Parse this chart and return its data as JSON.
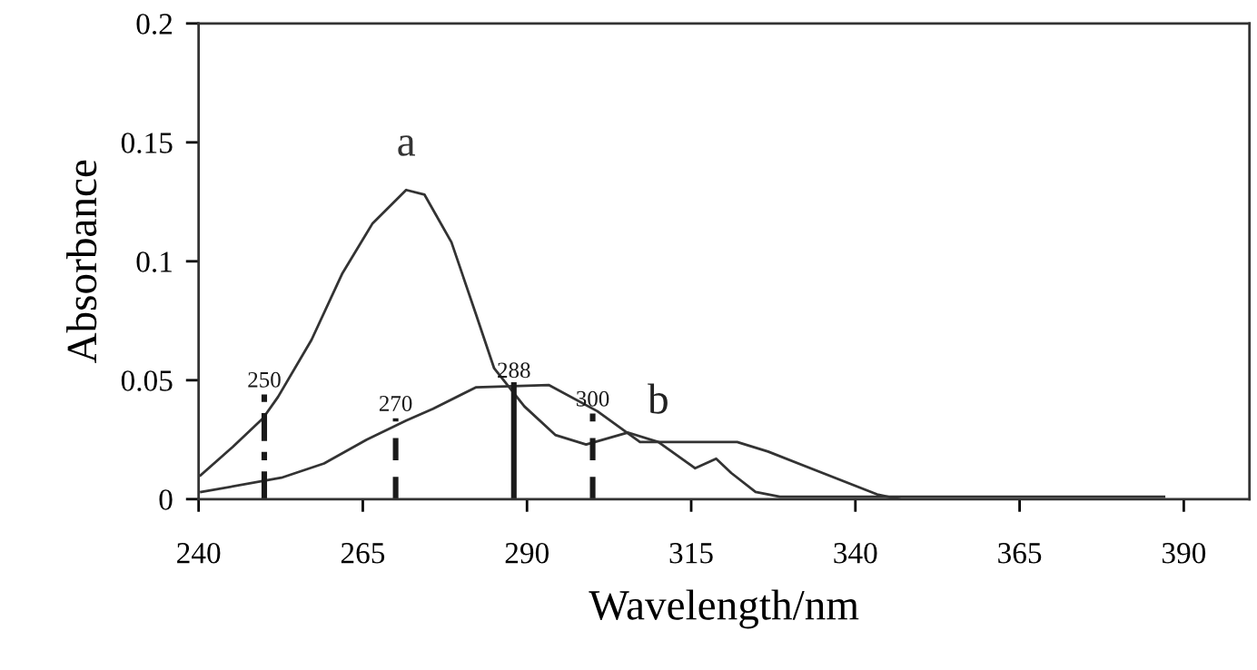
{
  "chart_data": {
    "type": "line",
    "xlabel": "Wavelength/nm",
    "ylabel": "Absorbance",
    "xlim": [
      240,
      400
    ],
    "xticks": [
      240,
      265,
      290,
      315,
      340,
      365,
      390
    ],
    "ylim": [
      0,
      0.2
    ],
    "yticks": [
      0,
      0.05,
      0.1,
      0.15,
      0.2
    ],
    "grid": false,
    "marker": "none",
    "series": [
      {
        "name": "a",
        "color": "#333333",
        "x": [
          240.3,
          245.2,
          249.8,
          252.1,
          257.2,
          261.9,
          266.5,
          271.6,
          274.4,
          278.5,
          282.2,
          285,
          289.6,
          294.3,
          299,
          305.4,
          310,
          315.6,
          318.8,
          321.1,
          324.8,
          328.5,
          360,
          387
        ],
        "values": [
          0.01,
          0.022,
          0.034,
          0.043,
          0.067,
          0.095,
          0.116,
          0.13,
          0.128,
          0.108,
          0.078,
          0.055,
          0.039,
          0.027,
          0.023,
          0.028,
          0.024,
          0.013,
          0.017,
          0.011,
          0.003,
          0.001,
          0.001,
          0.001
        ]
      },
      {
        "color": "#333333",
        "x": [
          240.4,
          252.6,
          259.1,
          265.6,
          271.6,
          275.7,
          282.2,
          293.3,
          300.7,
          307.2,
          322,
          326.7,
          343.3,
          346.7
        ],
        "values": [
          0.003,
          0.009,
          0.015,
          0.025,
          0.033,
          0.038,
          0.047,
          0.048,
          0.037,
          0.024,
          0.024,
          0.02,
          0.002,
          0.0
        ]
      },
      {
        "name": "250",
        "color": "#1a1a1a",
        "line_style": "dashdot",
        "x": [
          250,
          250
        ],
        "values": [
          0,
          0.044
        ]
      },
      {
        "name": "270",
        "color": "#1a1a1a",
        "line_style": "dashed",
        "x": [
          270,
          270
        ],
        "values": [
          0,
          0.034
        ]
      },
      {
        "name": "288",
        "color": "#1a1a1a",
        "line_style": "solid",
        "x": [
          288,
          288
        ],
        "values": [
          0,
          0.048
        ]
      },
      {
        "name": "300",
        "color": "#1a1a1a",
        "line_style": "dashed",
        "x": [
          300,
          300
        ],
        "values": [
          0,
          0.036
        ]
      }
    ],
    "annotations": [
      {
        "text": "b",
        "x": 310,
        "y": 0.028
      }
    ]
  }
}
